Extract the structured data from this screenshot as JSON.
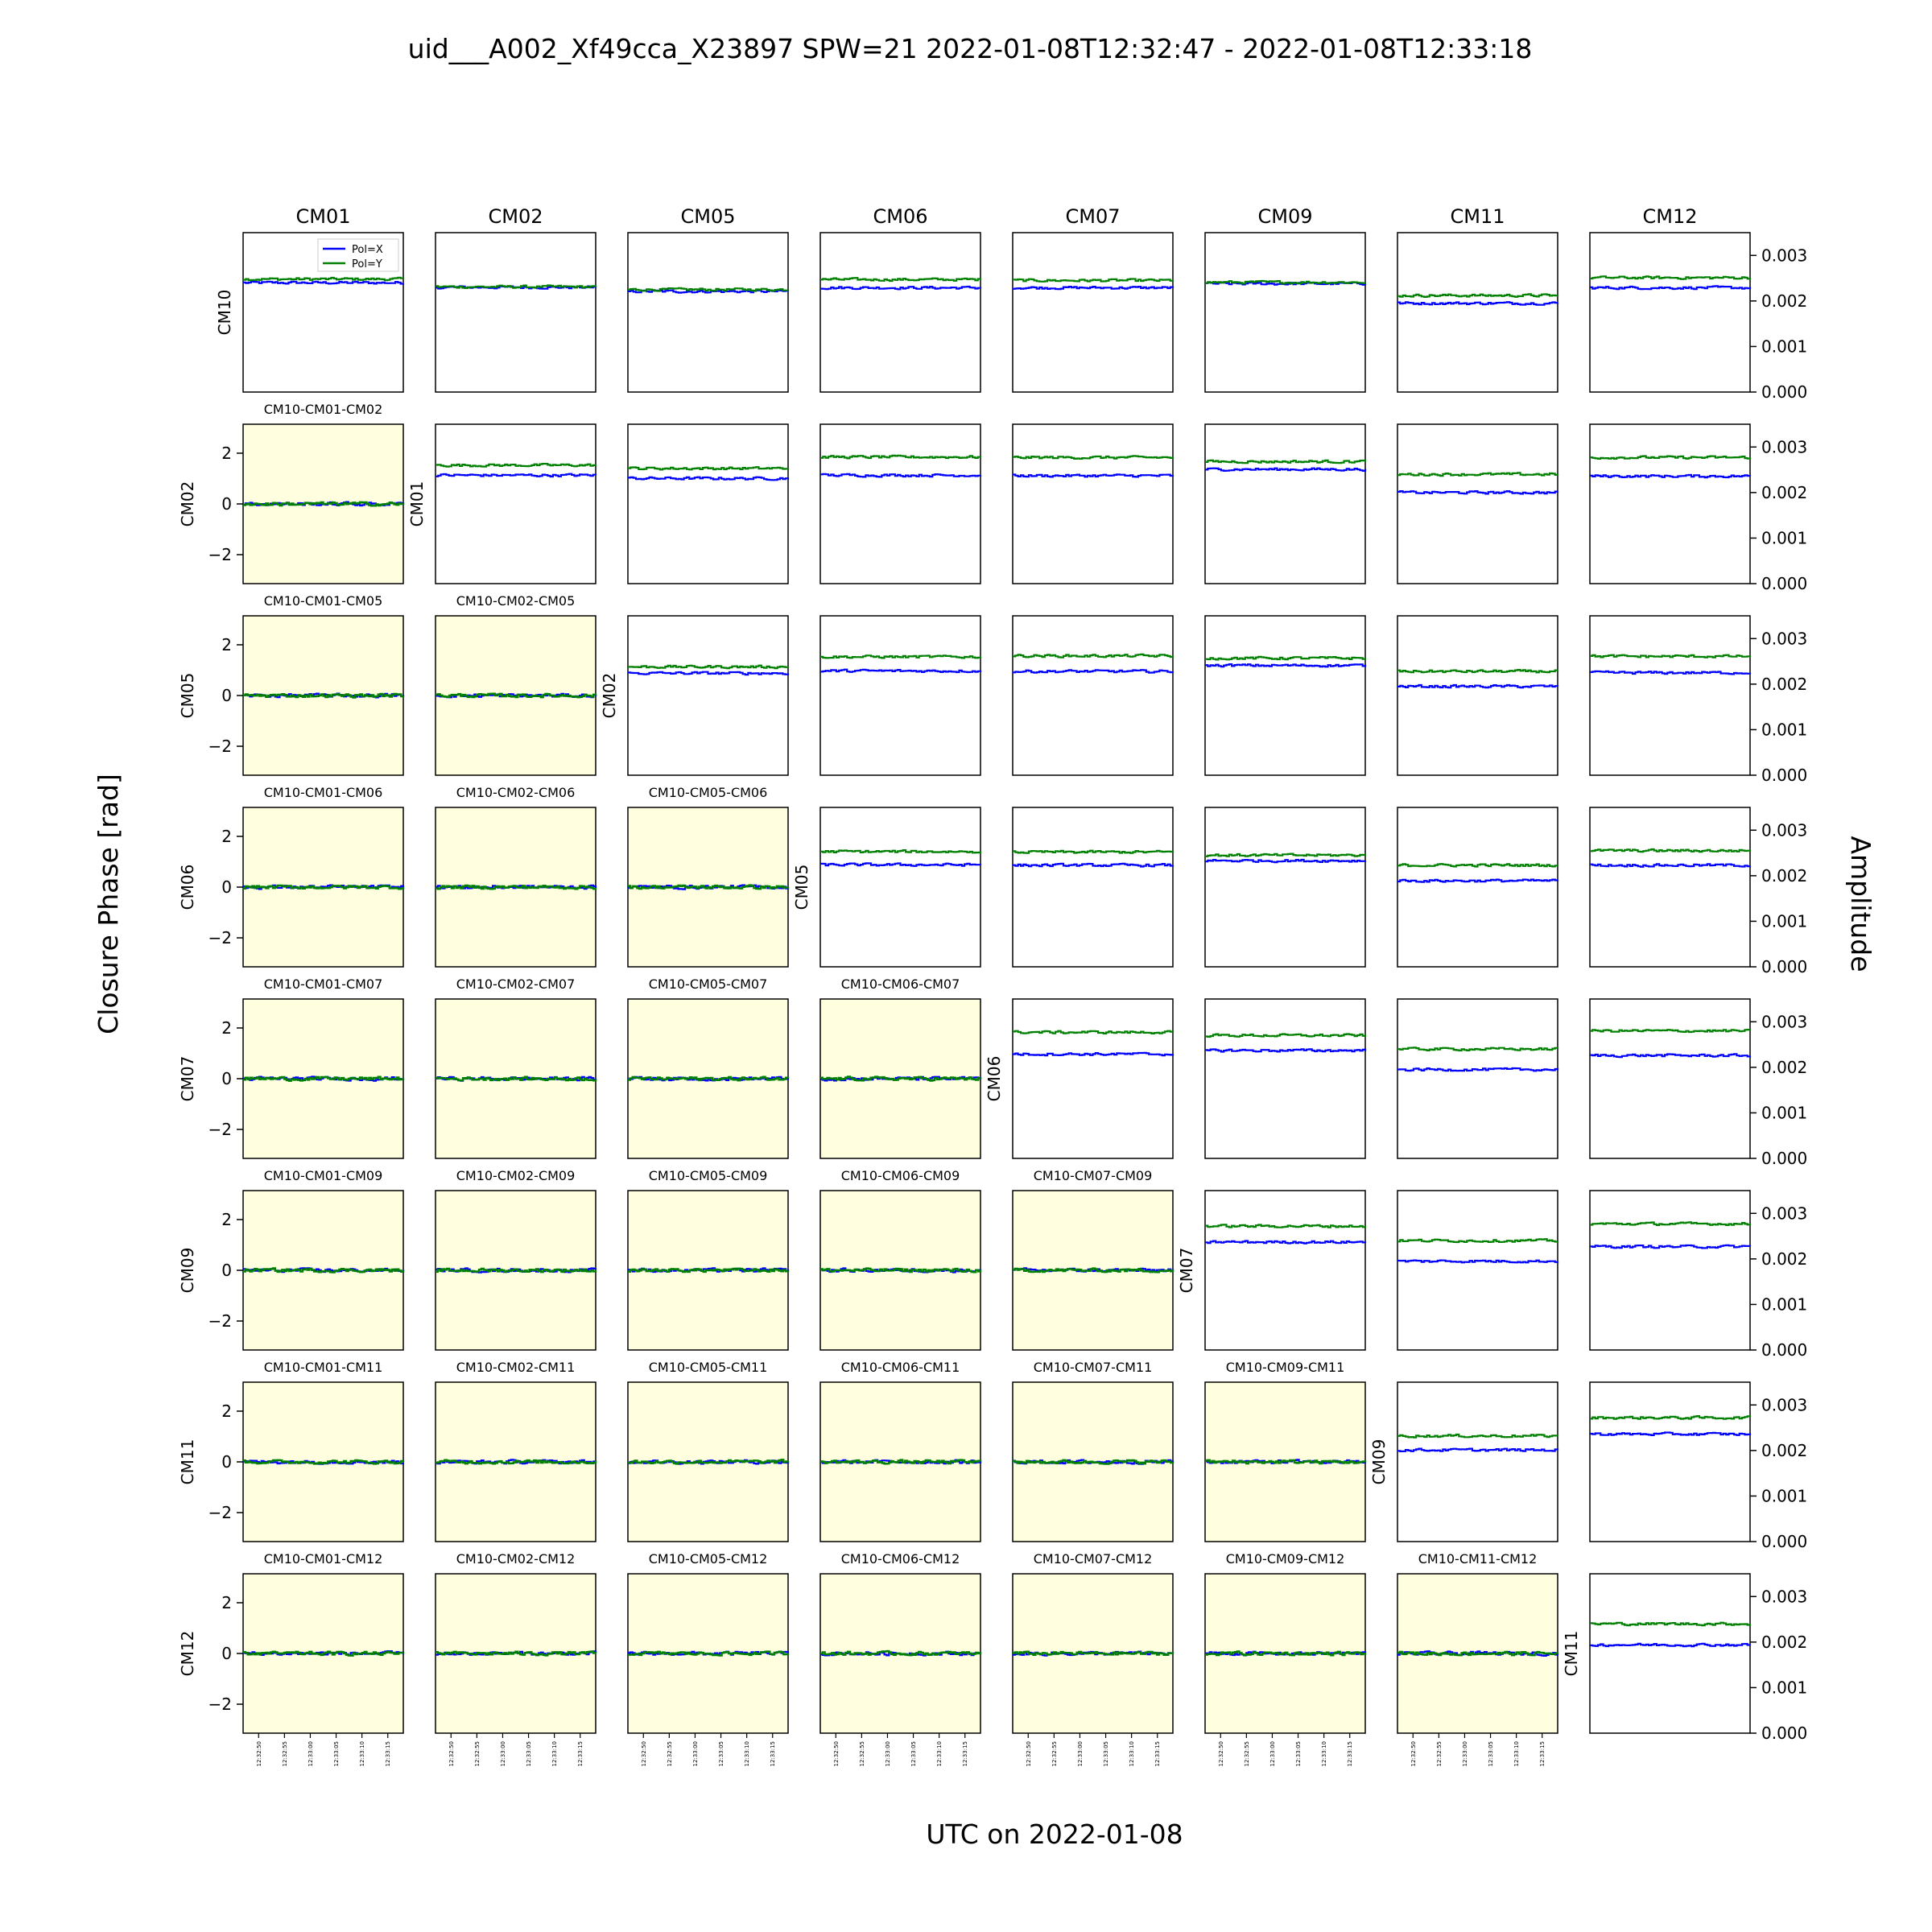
{
  "title": "uid___A002_Xf49cca_X23897 SPW=21 2022-01-08T12:32:47 - 2022-01-08T12:33:18",
  "xlabel": "UTC on 2022-01-08",
  "ylabel_left": "Closure Phase [rad]",
  "ylabel_right": "Amplitude",
  "colors": {
    "polx": "#0000ff",
    "poly": "#008000",
    "phase_panel_bg": "#ffffe0"
  },
  "chart_data": {
    "type": "line",
    "reference_antenna": "CM10",
    "column_antennas": [
      "CM01",
      "CM02",
      "CM05",
      "CM06",
      "CM07",
      "CM09",
      "CM11",
      "CM12"
    ],
    "row_antennas": [
      "CM10",
      "CM02",
      "CM05",
      "CM06",
      "CM07",
      "CM09",
      "CM11",
      "CM12"
    ],
    "legend": {
      "entries": [
        "Pol=X",
        "Pol=Y"
      ],
      "placement": "upper-right of first panel"
    },
    "amplitude_axis": {
      "ylim": [
        0,
        0.0035
      ],
      "ticks": [
        "0.000",
        "0.001",
        "0.002",
        "0.003"
      ]
    },
    "phase_axis": {
      "ylim": [
        -3.1416,
        3.1416
      ],
      "ticks": [
        "−2",
        "0",
        "2"
      ]
    },
    "time_axis": {
      "range": [
        "12:32:47",
        "12:33:18"
      ],
      "ticks": [
        "12:32:50",
        "12:32:55",
        "12:33:00",
        "12:33:05",
        "12:33:10",
        "12:33:15"
      ]
    },
    "amplitude_panels": [
      {
        "row": 0,
        "col": 0,
        "label": "CM10",
        "polx": 0.0024,
        "poly": 0.00248
      },
      {
        "row": 0,
        "col": 1,
        "label": "",
        "polx": 0.0023,
        "poly": 0.00231
      },
      {
        "row": 0,
        "col": 2,
        "label": "",
        "polx": 0.00221,
        "poly": 0.00225
      },
      {
        "row": 0,
        "col": 3,
        "label": "",
        "polx": 0.00229,
        "poly": 0.00247
      },
      {
        "row": 0,
        "col": 4,
        "label": "",
        "polx": 0.00229,
        "poly": 0.00245
      },
      {
        "row": 0,
        "col": 5,
        "label": "",
        "polx": 0.00238,
        "poly": 0.00241
      },
      {
        "row": 0,
        "col": 6,
        "label": "",
        "polx": 0.00195,
        "poly": 0.00212
      },
      {
        "row": 0,
        "col": 7,
        "label": "",
        "polx": 0.00229,
        "poly": 0.00251
      },
      {
        "row": 1,
        "col": 1,
        "label": "CM01",
        "polx": 0.00238,
        "poly": 0.0026
      },
      {
        "row": 1,
        "col": 2,
        "label": "",
        "polx": 0.00231,
        "poly": 0.00253
      },
      {
        "row": 1,
        "col": 3,
        "label": "",
        "polx": 0.00238,
        "poly": 0.00278
      },
      {
        "row": 1,
        "col": 4,
        "label": "",
        "polx": 0.00237,
        "poly": 0.00277
      },
      {
        "row": 1,
        "col": 5,
        "label": "",
        "polx": 0.00251,
        "poly": 0.00268
      },
      {
        "row": 1,
        "col": 6,
        "label": "",
        "polx": 0.002,
        "poly": 0.0024
      },
      {
        "row": 1,
        "col": 7,
        "label": "",
        "polx": 0.00236,
        "poly": 0.00277
      },
      {
        "row": 2,
        "col": 2,
        "label": "CM02",
        "polx": 0.00224,
        "poly": 0.00238
      },
      {
        "row": 2,
        "col": 3,
        "label": "",
        "polx": 0.00229,
        "poly": 0.0026
      },
      {
        "row": 2,
        "col": 4,
        "label": "",
        "polx": 0.00228,
        "poly": 0.00262
      },
      {
        "row": 2,
        "col": 5,
        "label": "",
        "polx": 0.00241,
        "poly": 0.00257
      },
      {
        "row": 2,
        "col": 6,
        "label": "",
        "polx": 0.00195,
        "poly": 0.00228
      },
      {
        "row": 2,
        "col": 7,
        "label": "",
        "polx": 0.00225,
        "poly": 0.00261
      },
      {
        "row": 3,
        "col": 3,
        "label": "CM05",
        "polx": 0.00224,
        "poly": 0.00253
      },
      {
        "row": 3,
        "col": 4,
        "label": "",
        "polx": 0.00223,
        "poly": 0.00252
      },
      {
        "row": 3,
        "col": 5,
        "label": "",
        "polx": 0.00233,
        "poly": 0.00245
      },
      {
        "row": 3,
        "col": 6,
        "label": "",
        "polx": 0.00189,
        "poly": 0.00223
      },
      {
        "row": 3,
        "col": 7,
        "label": "",
        "polx": 0.00223,
        "poly": 0.00255
      },
      {
        "row": 4,
        "col": 4,
        "label": "CM06",
        "polx": 0.00229,
        "poly": 0.00277
      },
      {
        "row": 4,
        "col": 5,
        "label": "",
        "polx": 0.00237,
        "poly": 0.0027
      },
      {
        "row": 4,
        "col": 6,
        "label": "",
        "polx": 0.00195,
        "poly": 0.0024
      },
      {
        "row": 4,
        "col": 7,
        "label": "",
        "polx": 0.00226,
        "poly": 0.0028
      },
      {
        "row": 5,
        "col": 5,
        "label": "CM07",
        "polx": 0.00237,
        "poly": 0.00272
      },
      {
        "row": 5,
        "col": 6,
        "label": "",
        "polx": 0.00195,
        "poly": 0.0024
      },
      {
        "row": 5,
        "col": 7,
        "label": "",
        "polx": 0.00227,
        "poly": 0.00277
      },
      {
        "row": 6,
        "col": 6,
        "label": "CM09",
        "polx": 0.00201,
        "poly": 0.00232
      },
      {
        "row": 6,
        "col": 7,
        "label": "",
        "polx": 0.00236,
        "poly": 0.00272
      },
      {
        "row": 7,
        "col": 7,
        "label": "CM11",
        "polx": 0.00194,
        "poly": 0.0024
      }
    ],
    "phase_panels": [
      {
        "row": 1,
        "col": 0,
        "title": "CM10-CM01-CM02",
        "value": 0.0
      },
      {
        "row": 2,
        "col": 0,
        "title": "CM10-CM01-CM05",
        "value": 0.0
      },
      {
        "row": 2,
        "col": 1,
        "title": "CM10-CM02-CM05",
        "value": 0.0
      },
      {
        "row": 3,
        "col": 0,
        "title": "CM10-CM01-CM06",
        "value": 0.0
      },
      {
        "row": 3,
        "col": 1,
        "title": "CM10-CM02-CM06",
        "value": 0.0
      },
      {
        "row": 3,
        "col": 2,
        "title": "CM10-CM05-CM06",
        "value": 0.0
      },
      {
        "row": 4,
        "col": 0,
        "title": "CM10-CM01-CM07",
        "value": 0.0
      },
      {
        "row": 4,
        "col": 1,
        "title": "CM10-CM02-CM07",
        "value": 0.0
      },
      {
        "row": 4,
        "col": 2,
        "title": "CM10-CM05-CM07",
        "value": 0.0
      },
      {
        "row": 4,
        "col": 3,
        "title": "CM10-CM06-CM07",
        "value": 0.0
      },
      {
        "row": 5,
        "col": 0,
        "title": "CM10-CM01-CM09",
        "value": 0.0
      },
      {
        "row": 5,
        "col": 1,
        "title": "CM10-CM02-CM09",
        "value": 0.0
      },
      {
        "row": 5,
        "col": 2,
        "title": "CM10-CM05-CM09",
        "value": 0.0
      },
      {
        "row": 5,
        "col": 3,
        "title": "CM10-CM06-CM09",
        "value": 0.0
      },
      {
        "row": 5,
        "col": 4,
        "title": "CM10-CM07-CM09",
        "value": 0.0
      },
      {
        "row": 6,
        "col": 0,
        "title": "CM10-CM01-CM11",
        "value": 0.0
      },
      {
        "row": 6,
        "col": 1,
        "title": "CM10-CM02-CM11",
        "value": 0.0
      },
      {
        "row": 6,
        "col": 2,
        "title": "CM10-CM05-CM11",
        "value": 0.0
      },
      {
        "row": 6,
        "col": 3,
        "title": "CM10-CM06-CM11",
        "value": 0.0
      },
      {
        "row": 6,
        "col": 4,
        "title": "CM10-CM07-CM11",
        "value": 0.0
      },
      {
        "row": 6,
        "col": 5,
        "title": "CM10-CM09-CM11",
        "value": 0.0
      },
      {
        "row": 7,
        "col": 0,
        "title": "CM10-CM01-CM12",
        "value": 0.0
      },
      {
        "row": 7,
        "col": 1,
        "title": "CM10-CM02-CM12",
        "value": 0.0
      },
      {
        "row": 7,
        "col": 2,
        "title": "CM10-CM05-CM12",
        "value": 0.0
      },
      {
        "row": 7,
        "col": 3,
        "title": "CM10-CM06-CM12",
        "value": 0.0
      },
      {
        "row": 7,
        "col": 4,
        "title": "CM10-CM07-CM12",
        "value": 0.0
      },
      {
        "row": 7,
        "col": 5,
        "title": "CM10-CM09-CM12",
        "value": 0.0
      },
      {
        "row": 7,
        "col": 6,
        "title": "CM10-CM11-CM12",
        "value": 0.0
      }
    ]
  }
}
